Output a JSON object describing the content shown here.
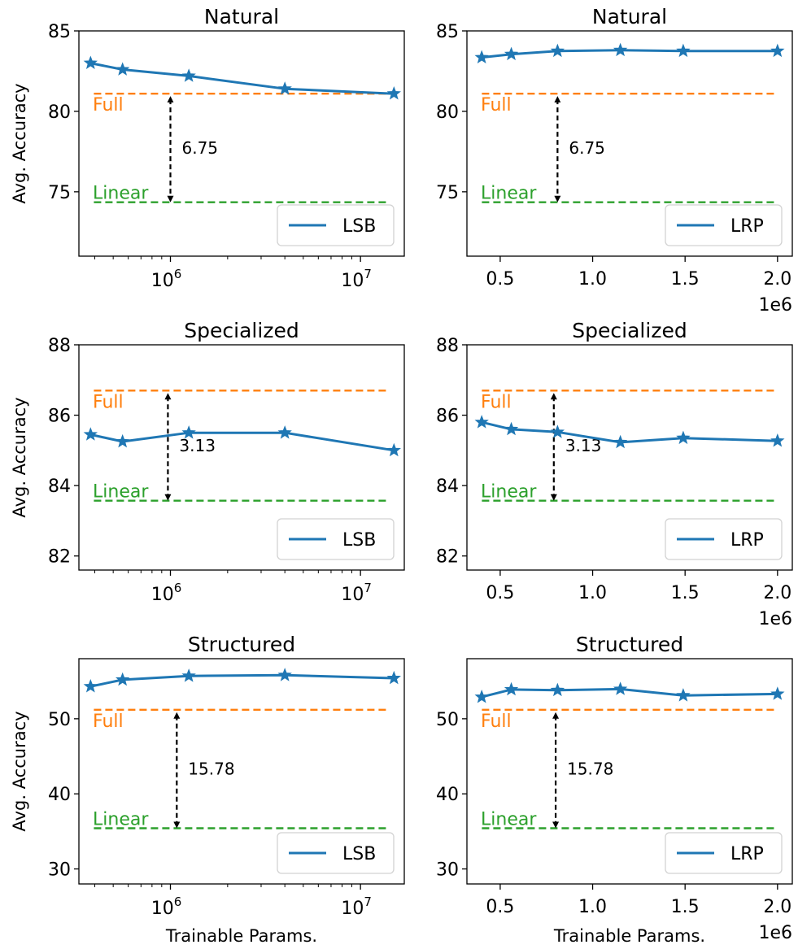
{
  "colors": {
    "series": "#1f77b4",
    "full": "#ff7f0e",
    "linear": "#2ca02c",
    "axis": "#000000"
  },
  "chart_data": [
    {
      "type": "line",
      "title": "Natural",
      "xscale": "log",
      "ylabel": "Avg. Accuracy",
      "xlabel": "",
      "xlim": [
        330000,
        17000000
      ],
      "ylim": [
        71,
        85
      ],
      "yticks": [
        {
          "v": 75,
          "label": "75"
        },
        {
          "v": 80,
          "label": "80"
        },
        {
          "v": 85,
          "label": "85"
        }
      ],
      "xticks": [
        {
          "v": 1000000,
          "base": "10",
          "exp": "6"
        },
        {
          "v": 10000000,
          "base": "10",
          "exp": "7"
        }
      ],
      "offset_label": "",
      "series": [
        {
          "name": "LSB",
          "x": [
            380000,
            560000,
            1250000,
            4000000,
            15000000
          ],
          "y": [
            83.0,
            82.6,
            82.2,
            81.4,
            81.1
          ]
        }
      ],
      "full": {
        "value": 81.1,
        "label": "Full"
      },
      "linear": {
        "value": 74.35,
        "label": "Linear"
      },
      "gap": {
        "x": 1000000,
        "label": "6.75"
      },
      "legend": {
        "position": "bottom-right"
      }
    },
    {
      "type": "line",
      "title": "Natural",
      "xscale": "linear",
      "ylabel": "",
      "xlabel": "",
      "xlim": [
        320000,
        2080000
      ],
      "ylim": [
        71,
        85
      ],
      "yticks": [
        {
          "v": 75,
          "label": "75"
        },
        {
          "v": 80,
          "label": "80"
        },
        {
          "v": 85,
          "label": "85"
        }
      ],
      "xticks": [
        {
          "v": 500000,
          "label": "0.5"
        },
        {
          "v": 1000000,
          "label": "1.0"
        },
        {
          "v": 1500000,
          "label": "1.5"
        },
        {
          "v": 2000000,
          "label": "2.0"
        }
      ],
      "offset_label": "1e6",
      "series": [
        {
          "name": "LRP",
          "x": [
            400000,
            560000,
            810000,
            1150000,
            1490000,
            2000000
          ],
          "y": [
            83.35,
            83.55,
            83.75,
            83.8,
            83.75,
            83.75
          ]
        }
      ],
      "full": {
        "value": 81.1,
        "label": "Full"
      },
      "linear": {
        "value": 74.35,
        "label": "Linear"
      },
      "gap": {
        "x": 810000,
        "label": "6.75"
      },
      "legend": {
        "position": "bottom-right"
      }
    },
    {
      "type": "line",
      "title": "Specialized",
      "xscale": "log",
      "ylabel": "Avg. Accuracy",
      "xlabel": "",
      "xlim": [
        330000,
        17000000
      ],
      "ylim": [
        81.6,
        88
      ],
      "yticks": [
        {
          "v": 82,
          "label": "82"
        },
        {
          "v": 84,
          "label": "84"
        },
        {
          "v": 86,
          "label": "86"
        },
        {
          "v": 88,
          "label": "88"
        }
      ],
      "xticks": [
        {
          "v": 1000000,
          "base": "10",
          "exp": "6"
        },
        {
          "v": 10000000,
          "base": "10",
          "exp": "7"
        }
      ],
      "offset_label": "",
      "series": [
        {
          "name": "LSB",
          "x": [
            380000,
            560000,
            1250000,
            4000000,
            15000000
          ],
          "y": [
            85.45,
            85.25,
            85.5,
            85.5,
            85.0
          ]
        }
      ],
      "full": {
        "value": 86.7,
        "label": "Full"
      },
      "linear": {
        "value": 83.57,
        "label": "Linear"
      },
      "gap": {
        "x": 970000,
        "label": "3.13"
      },
      "legend": {
        "position": "bottom-right"
      }
    },
    {
      "type": "line",
      "title": "Specialized",
      "xscale": "linear",
      "ylabel": "",
      "xlabel": "",
      "xlim": [
        320000,
        2080000
      ],
      "ylim": [
        81.6,
        88
      ],
      "yticks": [
        {
          "v": 82,
          "label": "82"
        },
        {
          "v": 84,
          "label": "84"
        },
        {
          "v": 86,
          "label": "86"
        },
        {
          "v": 88,
          "label": "88"
        }
      ],
      "xticks": [
        {
          "v": 500000,
          "label": "0.5"
        },
        {
          "v": 1000000,
          "label": "1.0"
        },
        {
          "v": 1500000,
          "label": "1.5"
        },
        {
          "v": 2000000,
          "label": "2.0"
        }
      ],
      "offset_label": "1e6",
      "series": [
        {
          "name": "LRP",
          "x": [
            400000,
            560000,
            810000,
            1150000,
            1490000,
            2000000
          ],
          "y": [
            85.8,
            85.6,
            85.52,
            85.23,
            85.35,
            85.27
          ]
        }
      ],
      "full": {
        "value": 86.7,
        "label": "Full"
      },
      "linear": {
        "value": 83.57,
        "label": "Linear"
      },
      "gap": {
        "x": 790000,
        "label": "3.13"
      },
      "legend": {
        "position": "bottom-right"
      }
    },
    {
      "type": "line",
      "title": "Structured",
      "xscale": "log",
      "ylabel": "Avg. Accuracy",
      "xlabel": "Trainable Params.",
      "xlim": [
        330000,
        17000000
      ],
      "ylim": [
        28,
        58
      ],
      "yticks": [
        {
          "v": 30,
          "label": "30"
        },
        {
          "v": 40,
          "label": "40"
        },
        {
          "v": 50,
          "label": "50"
        }
      ],
      "xticks": [
        {
          "v": 1000000,
          "base": "10",
          "exp": "6"
        },
        {
          "v": 10000000,
          "base": "10",
          "exp": "7"
        }
      ],
      "offset_label": "",
      "series": [
        {
          "name": "LSB",
          "x": [
            380000,
            560000,
            1250000,
            4000000,
            15000000
          ],
          "y": [
            54.3,
            55.2,
            55.7,
            55.8,
            55.4
          ]
        }
      ],
      "full": {
        "value": 51.2,
        "label": "Full"
      },
      "linear": {
        "value": 35.42,
        "label": "Linear"
      },
      "gap": {
        "x": 1080000,
        "label": "15.78"
      },
      "legend": {
        "position": "bottom-right"
      }
    },
    {
      "type": "line",
      "title": "Structured",
      "xscale": "linear",
      "ylabel": "",
      "xlabel": "Trainable Params.",
      "xlim": [
        320000,
        2080000
      ],
      "ylim": [
        28,
        58
      ],
      "yticks": [
        {
          "v": 30,
          "label": "30"
        },
        {
          "v": 40,
          "label": "40"
        },
        {
          "v": 50,
          "label": "50"
        }
      ],
      "xticks": [
        {
          "v": 500000,
          "label": "0.5"
        },
        {
          "v": 1000000,
          "label": "1.0"
        },
        {
          "v": 1500000,
          "label": "1.5"
        },
        {
          "v": 2000000,
          "label": "2.0"
        }
      ],
      "offset_label": "1e6",
      "series": [
        {
          "name": "LRP",
          "x": [
            400000,
            560000,
            810000,
            1150000,
            1490000,
            2000000
          ],
          "y": [
            52.9,
            53.9,
            53.8,
            53.95,
            53.1,
            53.3
          ]
        }
      ],
      "full": {
        "value": 51.2,
        "label": "Full"
      },
      "linear": {
        "value": 35.42,
        "label": "Linear"
      },
      "gap": {
        "x": 800000,
        "label": "15.78"
      },
      "legend": {
        "position": "bottom-right"
      }
    }
  ]
}
